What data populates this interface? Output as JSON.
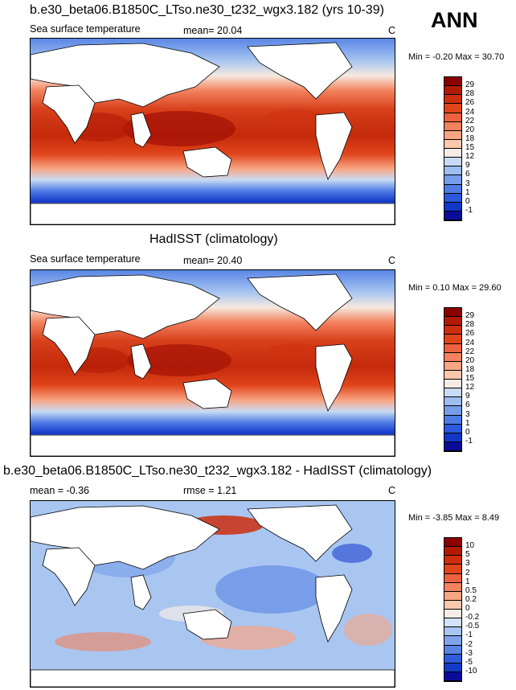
{
  "season": "ANN",
  "panels": [
    {
      "title": "b.e30_beta06.B1850C_LTso.ne30_t232_wgx3.182 (yrs 10-39)",
      "left_label": "Sea surface temperature",
      "center_label": "mean=  20.04",
      "units": "C",
      "minmax": "Min = -0.20 Max =  30.70",
      "colorbar": {
        "labels": [
          "29",
          "28",
          "26",
          "24",
          "22",
          "20",
          "18",
          "15",
          "12",
          "9",
          "6",
          "3",
          "1",
          "0",
          "-1"
        ],
        "colors": [
          "#8b0000",
          "#b11b06",
          "#cd2e0e",
          "#e0441b",
          "#ec6240",
          "#f3825e",
          "#f8a584",
          "#fbc8ae",
          "#f5ede5",
          "#c9dbf4",
          "#9ebdf0",
          "#779cea",
          "#4f7be4",
          "#2b58dc",
          "#1137c8",
          "#0a0c99"
        ]
      }
    },
    {
      "title": "HadISST (climatology)",
      "left_label": "Sea surface temperature",
      "center_label": "mean=  20.40",
      "units": "C",
      "minmax": "Min =  0.10 Max =  29.60",
      "colorbar": {
        "labels": [
          "29",
          "28",
          "26",
          "24",
          "22",
          "20",
          "18",
          "15",
          "12",
          "9",
          "6",
          "3",
          "1",
          "0",
          "-1"
        ],
        "colors": [
          "#8b0000",
          "#b11b06",
          "#cd2e0e",
          "#e0441b",
          "#ec6240",
          "#f3825e",
          "#f8a584",
          "#fbc8ae",
          "#f5ede5",
          "#c9dbf4",
          "#9ebdf0",
          "#779cea",
          "#4f7be4",
          "#2b58dc",
          "#1137c8",
          "#0a0c99"
        ]
      }
    },
    {
      "title": "b.e30_beta06.B1850C_LTso.ne30_t232_wgx3.182 - HadISST (climatology)",
      "left_label": "mean =  -0.36",
      "center_label": "rmse =   1.21",
      "units": "C",
      "minmax": "Min = -3.85 Max =   8.49",
      "colorbar": {
        "labels": [
          "10",
          "5",
          "3",
          "2",
          "1",
          "0.5",
          "0.2",
          "0",
          "-0.2",
          "-0.5",
          "-1",
          "-2",
          "-3",
          "-5",
          "-10"
        ],
        "colors": [
          "#8b0000",
          "#b11b06",
          "#cd2e0e",
          "#e0441b",
          "#ec6240",
          "#f3825e",
          "#f8a584",
          "#fbc8ae",
          "#f5ede5",
          "#d2e2f6",
          "#a9c6f1",
          "#7fa4ea",
          "#5884e5",
          "#2f5cdb",
          "#133bc7",
          "#0a0c99"
        ]
      }
    }
  ],
  "colors": {
    "ocean_warm": "#d8401c",
    "ocean_hot": "#a51205",
    "ocean_cool": "#4f7be4",
    "ocean_cold": "#1137c8",
    "land": "#ffffff",
    "coast": "#000000"
  }
}
